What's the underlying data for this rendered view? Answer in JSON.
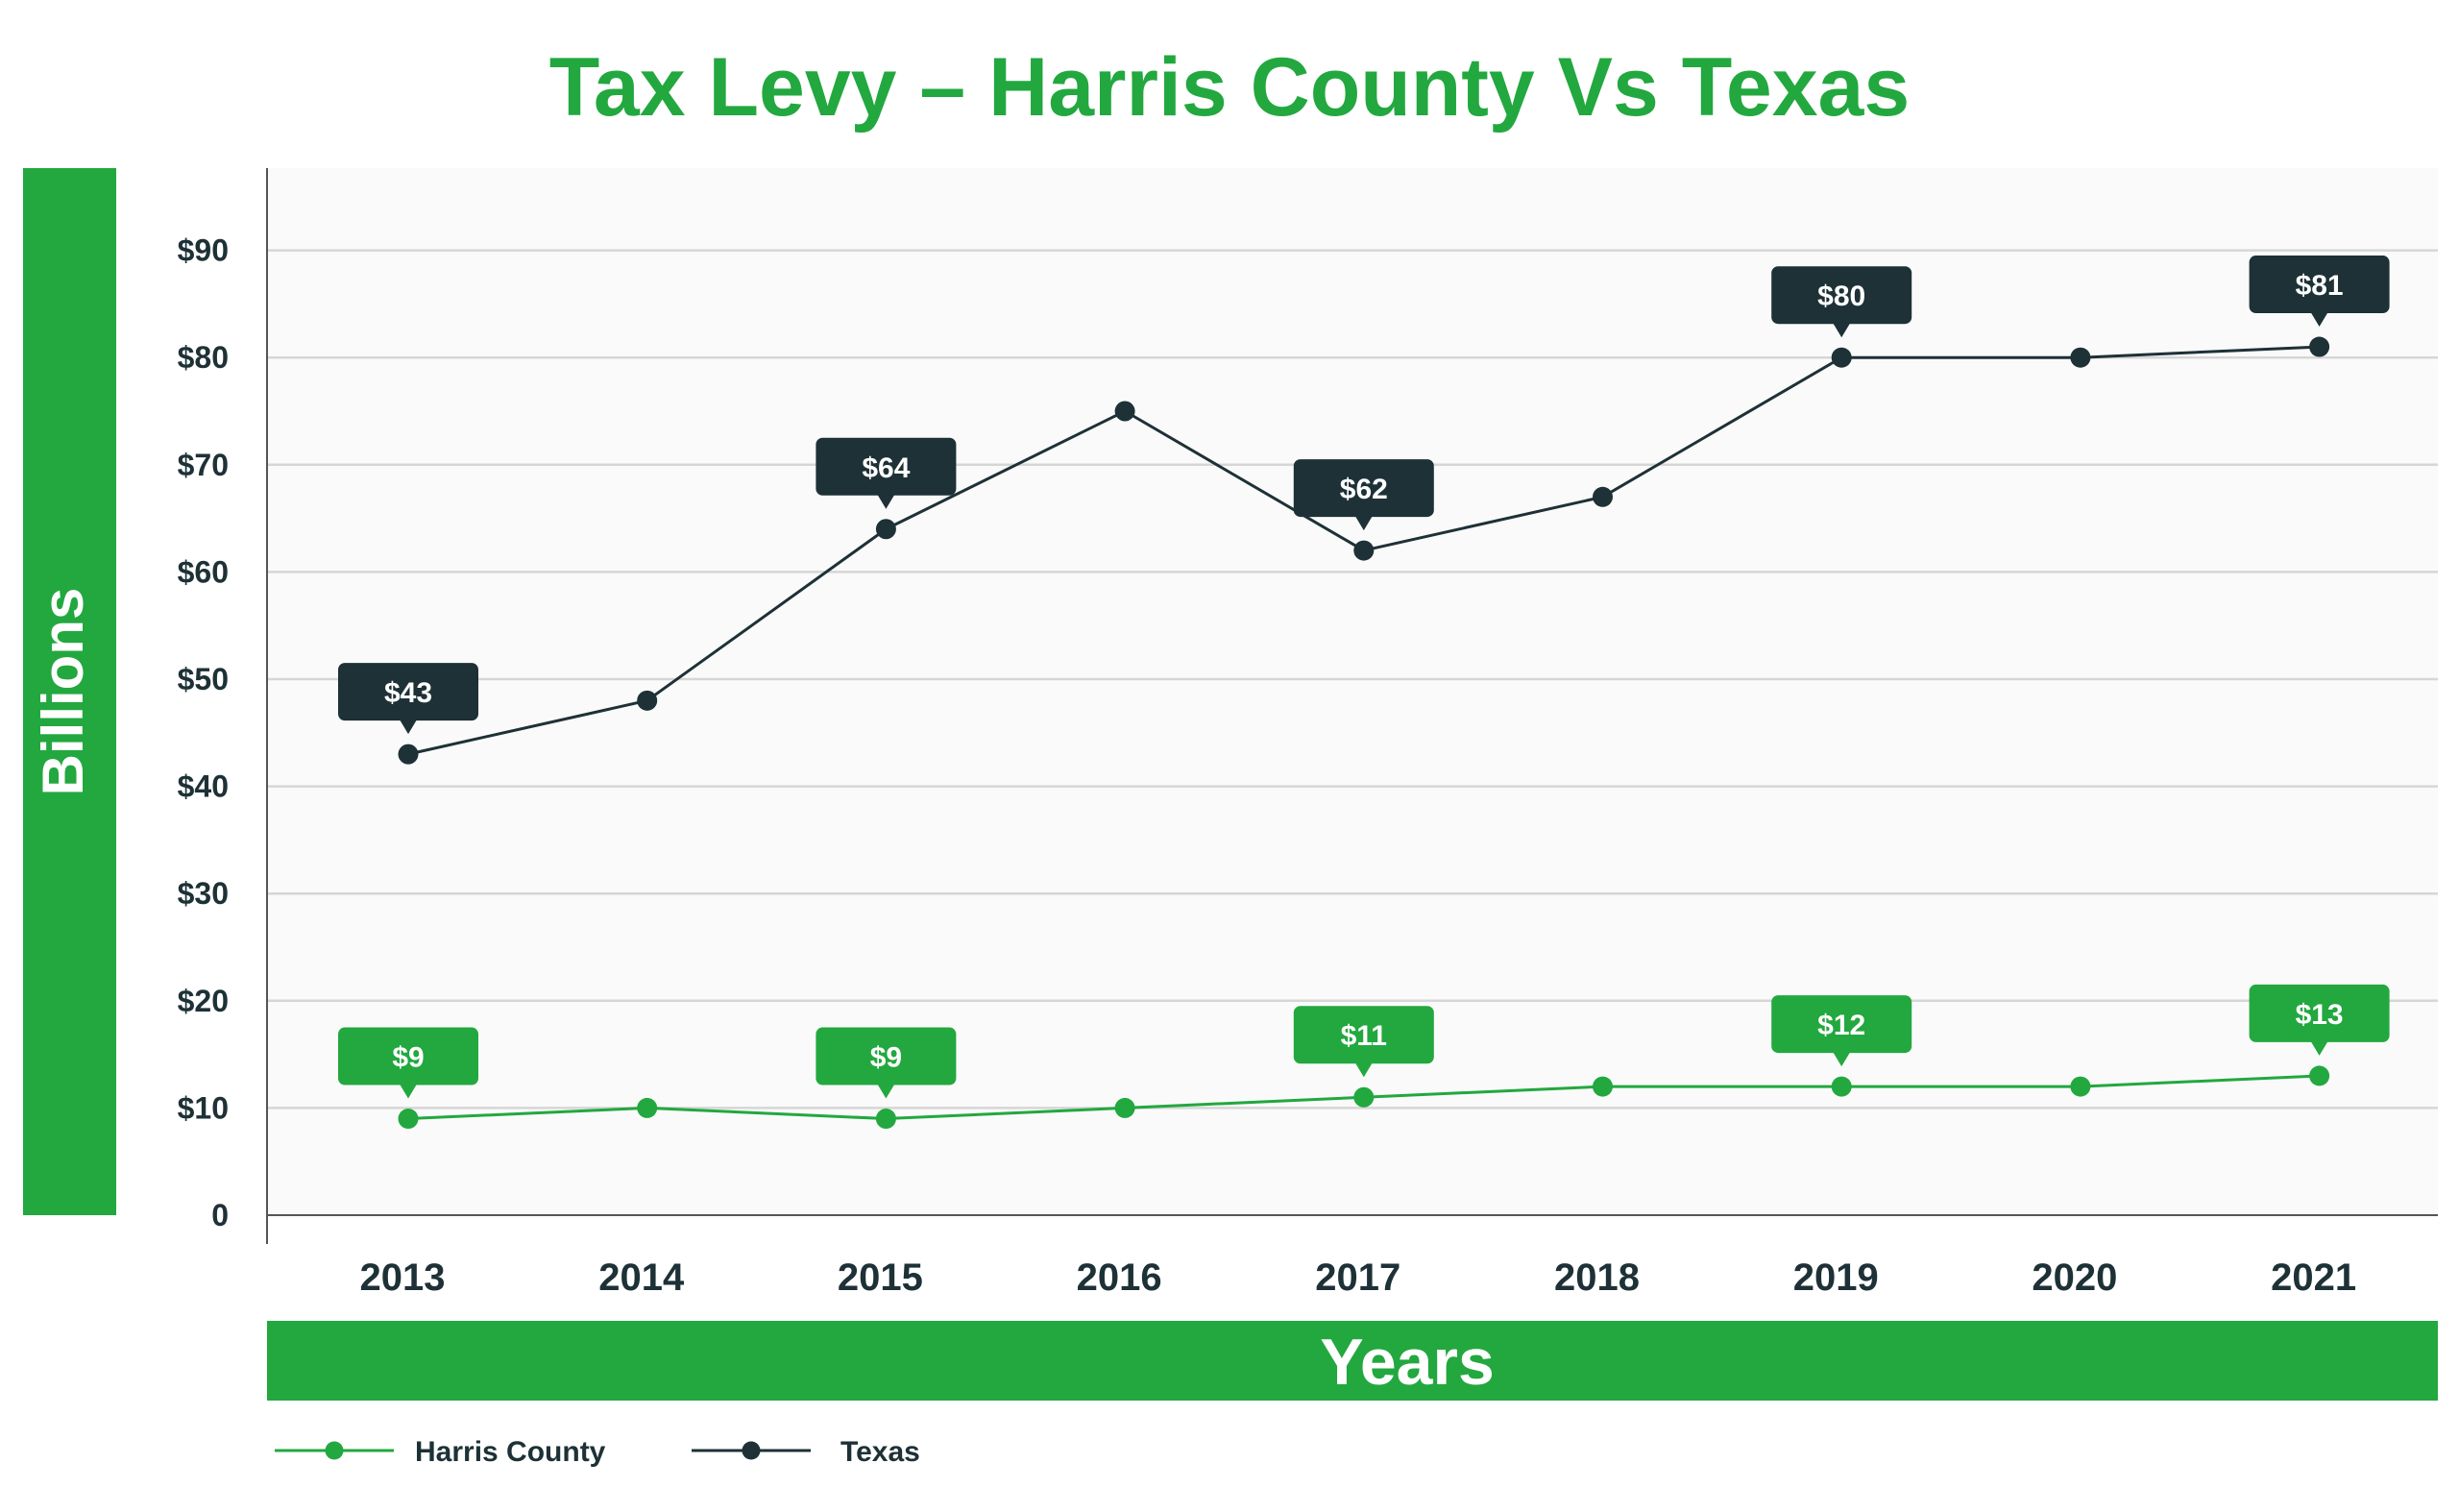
{
  "chart_data": {
    "type": "line",
    "title": "Tax Levy – Harris County Vs Texas",
    "xlabel": "Years",
    "ylabel": "Billions",
    "categories": [
      "2013",
      "2014",
      "2015",
      "2016",
      "2017",
      "2018",
      "2019",
      "2020",
      "2021"
    ],
    "yticks": [
      "0",
      "$10",
      "$20",
      "$30",
      "$40",
      "$50",
      "$60",
      "$70",
      "$80",
      "$90"
    ],
    "ylim": [
      0,
      97
    ],
    "grid": true,
    "legend_position": "bottom-left",
    "series": [
      {
        "name": "Harris County",
        "color": "#22a83f",
        "values": [
          9,
          10,
          9,
          10,
          11,
          12,
          12,
          12,
          13
        ],
        "labels": [
          "$9",
          null,
          "$9",
          null,
          "$11",
          null,
          "$12",
          null,
          "$13"
        ]
      },
      {
        "name": "Texas",
        "color": "#1d3136",
        "values": [
          43,
          48,
          64,
          75,
          62,
          67,
          80,
          80,
          81
        ],
        "labels": [
          "$43",
          null,
          "$64",
          null,
          "$62",
          null,
          "$80",
          null,
          "$81"
        ]
      }
    ]
  },
  "colors": {
    "accent": "#22a83f",
    "dark": "#1d3136",
    "plot_background": "#fafafa",
    "grid": "#d6d6d6"
  }
}
